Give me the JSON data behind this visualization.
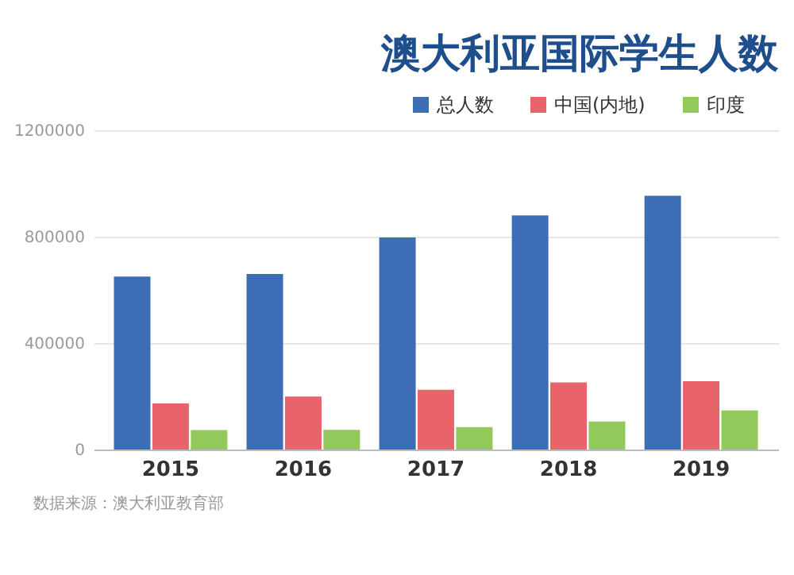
{
  "chart_data": {
    "type": "bar",
    "title": "澳大利亚国际学生人数",
    "categories": [
      "2015",
      "2016",
      "2017",
      "2018",
      "2019"
    ],
    "series": [
      {
        "name": "总人数",
        "color": "#3d6db5",
        "values": [
          650000,
          660000,
          797000,
          880000,
          954000
        ]
      },
      {
        "name": "中国(内地)",
        "color": "#e8636a",
        "values": [
          173000,
          199000,
          225000,
          252000,
          257000
        ]
      },
      {
        "name": "印度",
        "color": "#93c95a",
        "values": [
          73000,
          74000,
          84000,
          105000,
          147000
        ]
      }
    ],
    "ylim": [
      0,
      1200000
    ],
    "yticks": [
      0,
      400000,
      800000,
      1200000
    ],
    "grid": "y",
    "legend": "top right",
    "annotations": [
      "数据来源：澳大利亚教育部"
    ]
  }
}
